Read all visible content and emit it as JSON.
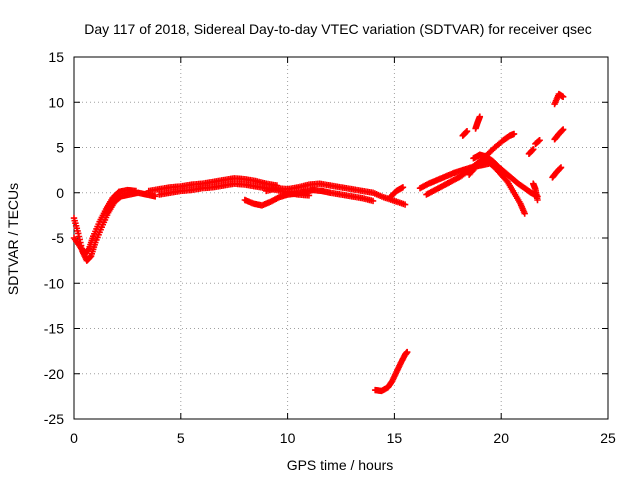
{
  "chart_data": {
    "type": "scatter",
    "title": "Day 117 of 2018, Sidereal Day-to-day VTEC variation (SDTVAR) for receiver qsec",
    "xlabel": "GPS time / hours",
    "ylabel": "SDTVAR / TECUs",
    "xlim": [
      0,
      25
    ],
    "ylim": [
      -25,
      15
    ],
    "x_ticks": [
      0,
      5,
      10,
      15,
      20,
      25
    ],
    "y_ticks": [
      -25,
      -20,
      -15,
      -10,
      -5,
      0,
      5,
      10,
      15
    ],
    "x_tick_labels": [
      "0",
      "5",
      "10",
      "15",
      "20",
      "25"
    ],
    "y_tick_labels": [
      "-25",
      "-20",
      "-15",
      "-10",
      "-5",
      "0",
      "5",
      "10",
      "15"
    ],
    "grid": true,
    "marker": "+",
    "color": "#ff0000",
    "series": [
      {
        "name": "track-early-dip",
        "x": [
          0,
          0.2,
          0.4,
          0.6,
          0.8,
          1.0,
          1.3,
          1.6,
          1.9,
          2.2,
          2.6,
          3.0,
          3.4,
          3.8
        ],
        "y": [
          -2.8,
          -4.5,
          -6.5,
          -7.5,
          -7.0,
          -5.5,
          -3.8,
          -2.2,
          -1.0,
          -0.4,
          -0.2,
          0.0,
          -0.2,
          -0.4
        ]
      },
      {
        "name": "track-early-dip-b",
        "x": [
          0,
          0.3,
          0.5,
          0.7,
          0.9,
          1.2,
          1.5,
          1.8,
          2.1,
          2.5,
          2.9
        ],
        "y": [
          -5.0,
          -6.0,
          -6.8,
          -6.2,
          -4.8,
          -3.2,
          -1.8,
          -0.6,
          0.1,
          0.3,
          0.2
        ]
      },
      {
        "name": "track-main-upper",
        "x": [
          3.5,
          4.0,
          4.5,
          5.0,
          5.5,
          6.0,
          6.5,
          7.0,
          7.5,
          8.0,
          8.5,
          9.0,
          9.5
        ],
        "y": [
          0.2,
          0.4,
          0.6,
          0.7,
          0.9,
          1.0,
          1.2,
          1.4,
          1.6,
          1.5,
          1.3,
          1.0,
          0.8
        ]
      },
      {
        "name": "track-main-middle",
        "x": [
          4.0,
          4.5,
          5.0,
          5.5,
          6.0,
          6.5,
          7.0,
          7.5,
          8.0,
          8.5,
          9.0,
          9.5,
          10.0,
          10.5,
          11.0
        ],
        "y": [
          -0.2,
          0.0,
          0.2,
          0.3,
          0.5,
          0.6,
          0.8,
          1.0,
          0.9,
          0.7,
          0.5,
          0.3,
          0.0,
          -0.2,
          -0.3
        ]
      },
      {
        "name": "track-main-lower",
        "x": [
          8.0,
          8.4,
          8.8,
          9.2,
          9.6,
          10.0,
          10.4,
          10.8,
          11.2,
          11.6,
          12.0,
          12.5,
          13.0,
          13.5,
          14.0
        ],
        "y": [
          -0.8,
          -1.2,
          -1.4,
          -1.0,
          -0.5,
          -0.2,
          -0.1,
          0.1,
          0.3,
          0.2,
          0.0,
          -0.2,
          -0.4,
          -0.6,
          -0.9
        ]
      },
      {
        "name": "track-evening",
        "x": [
          9.0,
          9.5,
          10.0,
          10.5,
          11.0,
          11.5,
          12.0,
          12.5,
          13.0,
          13.5,
          14.0,
          14.5,
          15.0,
          15.5
        ],
        "y": [
          0.2,
          0.5,
          0.4,
          0.6,
          0.9,
          1.0,
          0.8,
          0.6,
          0.4,
          0.2,
          0.0,
          -0.5,
          -0.9,
          -1.3
        ]
      },
      {
        "name": "track-late-segment",
        "x": [
          14.8,
          15.1,
          15.4
        ],
        "y": [
          -0.5,
          0.2,
          0.6
        ]
      },
      {
        "name": "track-outlier-low",
        "x": [
          14.1,
          14.4,
          14.7,
          14.9,
          15.1,
          15.3,
          15.5,
          15.6
        ],
        "y": [
          -21.8,
          -21.9,
          -21.5,
          -20.8,
          -19.8,
          -18.8,
          -17.9,
          -17.6
        ]
      },
      {
        "name": "track-night-a",
        "x": [
          16.2,
          16.6,
          17.0,
          17.4,
          17.8,
          18.2,
          18.6,
          19.0,
          19.4
        ],
        "y": [
          0.5,
          1.0,
          1.4,
          1.8,
          2.2,
          2.5,
          2.8,
          3.0,
          3.2
        ]
      },
      {
        "name": "track-night-b",
        "x": [
          16.5,
          16.9,
          17.3,
          17.7,
          18.1,
          18.5,
          18.9,
          19.3,
          19.7,
          20.1,
          20.4,
          20.6
        ],
        "y": [
          -0.2,
          0.3,
          0.8,
          1.3,
          1.8,
          2.5,
          3.3,
          4.1,
          5.0,
          5.8,
          6.3,
          6.5
        ]
      },
      {
        "name": "track-night-c",
        "x": [
          18.5,
          18.8,
          19.1,
          19.4,
          19.7,
          20.0,
          20.3,
          20.6,
          20.9,
          21.1
        ],
        "y": [
          2.0,
          2.8,
          3.6,
          3.4,
          2.8,
          2.0,
          1.2,
          0.0,
          -1.2,
          -2.3
        ]
      },
      {
        "name": "track-night-d",
        "x": [
          18.7,
          19.0,
          19.3,
          19.6,
          19.9,
          20.2,
          20.5,
          20.8,
          21.1,
          21.4,
          21.7
        ],
        "y": [
          3.8,
          4.2,
          4.0,
          3.5,
          2.8,
          2.2,
          1.6,
          1.0,
          0.5,
          0.0,
          -0.4
        ]
      },
      {
        "name": "track-short-1",
        "x": [
          18.2,
          18.4
        ],
        "y": [
          6.3,
          6.8
        ]
      },
      {
        "name": "track-short-2",
        "x": [
          18.8,
          18.9,
          19.0
        ],
        "y": [
          7.1,
          7.8,
          8.4
        ]
      },
      {
        "name": "track-short-3",
        "x": [
          21.3,
          21.5
        ],
        "y": [
          4.3,
          4.8
        ]
      },
      {
        "name": "track-short-4",
        "x": [
          21.6,
          21.8
        ],
        "y": [
          5.4,
          5.8
        ]
      },
      {
        "name": "track-short-5",
        "x": [
          21.5,
          21.6,
          21.7
        ],
        "y": [
          1.0,
          0.4,
          -0.8
        ]
      },
      {
        "name": "track-late-high",
        "x": [
          22.5,
          22.7,
          22.9
        ],
        "y": [
          9.8,
          10.9,
          10.6
        ]
      },
      {
        "name": "track-late-mid",
        "x": [
          22.5,
          22.7,
          22.9
        ],
        "y": [
          5.9,
          6.5,
          7.0
        ]
      },
      {
        "name": "track-late-low",
        "x": [
          22.4,
          22.6,
          22.8
        ],
        "y": [
          1.7,
          2.3,
          2.8
        ]
      }
    ]
  }
}
